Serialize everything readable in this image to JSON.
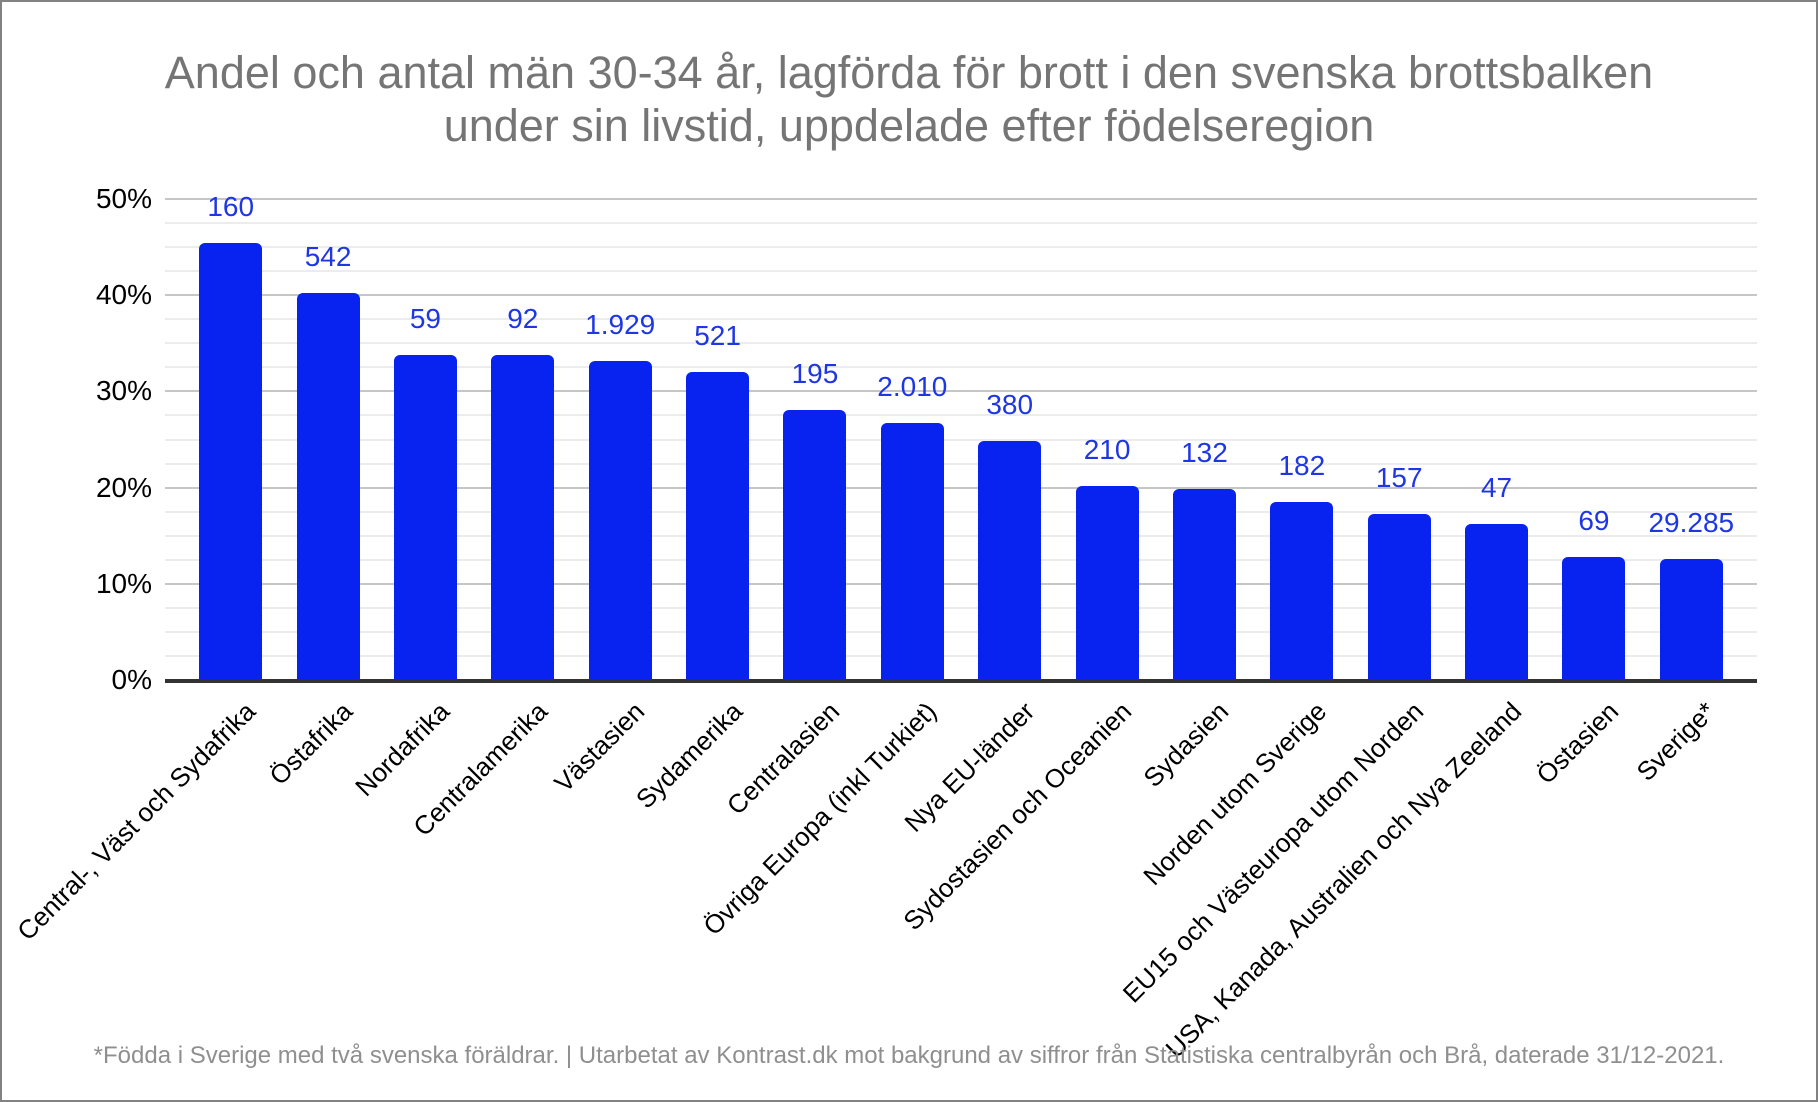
{
  "title": {
    "line1": "Andel och antal män 30-34 år, lagförda för brott i den svenska brottsbalken",
    "line2": "under sin livstid, uppdelade efter födelseregion"
  },
  "footer": {
    "text": "*Födda i Sverige med två svenska föräldrar. | Utarbetat av Kontrast.dk mot bakgrund av siffror från Statistiska centralbyrån och Brå, daterade 31/12-2021."
  },
  "colors": {
    "bar": "#0822f0",
    "bar_value_label": "#1e36e3",
    "title_text": "#757575",
    "footer_text": "#8f8f8f",
    "axis_line": "#333333",
    "major_gridline": "#c6c6c6",
    "minor_gridline": "#ececec",
    "tick_label": "#000000"
  },
  "chart_data": {
    "type": "bar",
    "title": "Andel och antal män 30-34 år, lagförda för brott i den svenska brottsbalken under sin livstid, uppdelade efter födelseregion",
    "xlabel": "",
    "ylabel": "",
    "legend_position": "none",
    "grid": "horizontal",
    "minor_gridline_step_percent": 2.5,
    "major_gridline_step_percent": 10,
    "ylim": [
      0,
      50
    ],
    "ytick_labels": [
      "0%",
      "10%",
      "20%",
      "30%",
      "40%",
      "50%"
    ],
    "categories": [
      "Central-, Väst och Sydafrika",
      "Östafrika",
      "Nordafrika",
      "Centralamerika",
      "Västasien",
      "Sydamerika",
      "Centralasien",
      "Övriga Europa (inkl Turkiet)",
      "Nya EU-länder",
      "Sydostasien och Oceanien",
      "Sydasien",
      "Norden utom Sverige",
      "EU15 och Västeuropa utom Norden",
      "USA, Kanada, Australien och Nya Zeeland",
      "Östasien",
      "Sverige*"
    ],
    "values_percent": [
      45.4,
      40.2,
      33.8,
      33.8,
      33.2,
      32.0,
      28.1,
      26.7,
      24.8,
      20.2,
      19.9,
      18.5,
      17.3,
      16.2,
      12.8,
      12.6
    ],
    "bar_count_labels": [
      "160",
      "542",
      "59",
      "92",
      "1.929",
      "521",
      "195",
      "2.010",
      "380",
      "210",
      "132",
      "182",
      "157",
      "47",
      "69",
      "29.285"
    ],
    "footnote": "*Födda i Sverige med två svenska föräldrar. | Utarbetat av Kontrast.dk mot bakgrund av siffror från Statistiska centralbyrån och Brå, daterade 31/12-2021."
  }
}
